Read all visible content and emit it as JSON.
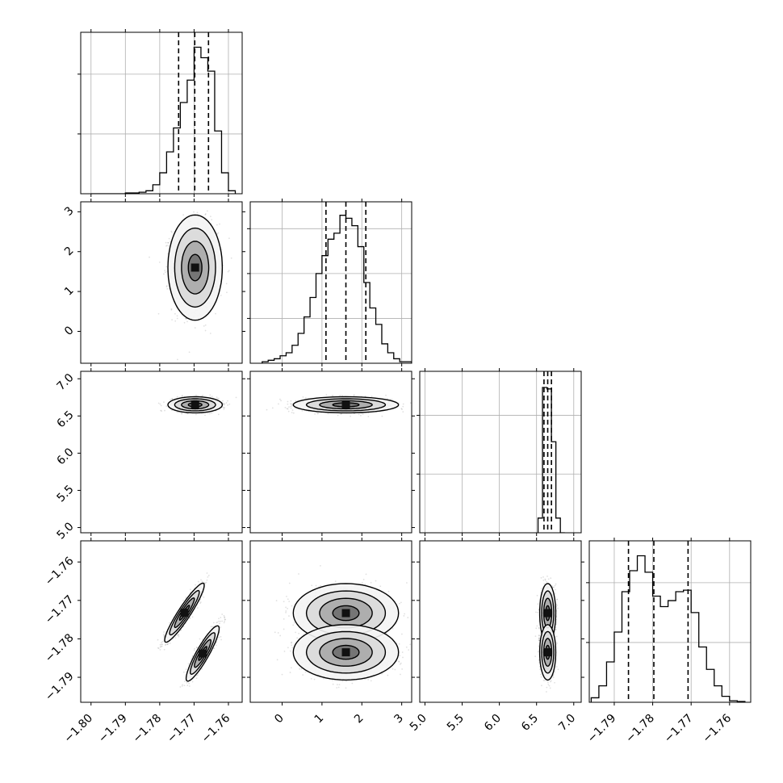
{
  "chart_data": {
    "type": "corner",
    "parameters": 4,
    "grid": true,
    "colors": {
      "line": "#000000",
      "grid": "#b0b0b0",
      "scatter": "#000000",
      "fill": "#000000"
    },
    "axes": {
      "p0": {
        "range": [
          -1.803,
          -1.756
        ],
        "ticks": [
          -1.8,
          -1.79,
          -1.78,
          -1.77,
          -1.76
        ],
        "tick_labels": [
          "−1.80",
          "−1.79",
          "−1.78",
          "−1.77",
          "−1.76"
        ]
      },
      "p1": {
        "range": [
          -0.8,
          3.25
        ],
        "ticks": [
          0,
          1,
          2,
          3
        ],
        "tick_labels": [
          "0",
          "1",
          "2",
          "3"
        ]
      },
      "p2": {
        "range": [
          4.93,
          7.1
        ],
        "ticks": [
          5.0,
          5.5,
          6.0,
          6.5,
          7.0
        ],
        "tick_labels": [
          "5.0",
          "5.5",
          "6.0",
          "6.5",
          "7.0"
        ]
      },
      "p3": {
        "range": [
          -1.7965,
          -1.7545
        ],
        "ticks": [
          -1.79,
          -1.78,
          -1.77,
          -1.76
        ],
        "tick_labels": [
          "−1.79",
          "−1.78",
          "−1.77",
          "−1.76"
        ]
      }
    },
    "histograms": [
      {
        "param": "p0",
        "quantiles": [
          -1.7745,
          -1.7698,
          -1.7658
        ],
        "ymax": 1.08,
        "yticks": [
          0.4,
          0.8
        ],
        "bins": [
          [
            -1.8,
            0.0
          ],
          [
            -1.798,
            0.0
          ],
          [
            -1.796,
            0.0
          ],
          [
            -1.794,
            0.0
          ],
          [
            -1.792,
            0.0
          ],
          [
            -1.79,
            0.005
          ],
          [
            -1.788,
            0.005
          ],
          [
            -1.786,
            0.01
          ],
          [
            -1.784,
            0.02
          ],
          [
            -1.782,
            0.06
          ],
          [
            -1.78,
            0.14
          ],
          [
            -1.778,
            0.28
          ],
          [
            -1.776,
            0.44
          ],
          [
            -1.774,
            0.61
          ],
          [
            -1.772,
            0.76
          ],
          [
            -1.77,
            0.98
          ],
          [
            -1.768,
            0.91
          ],
          [
            -1.766,
            0.82
          ],
          [
            -1.764,
            0.42
          ],
          [
            -1.762,
            0.14
          ],
          [
            -1.76,
            0.02
          ]
        ],
        "bin_width": 0.002
      },
      {
        "param": "p1",
        "quantiles": [
          1.1,
          1.6,
          2.1
        ],
        "ymax": 1.08,
        "yticks": [
          0.3,
          0.6,
          0.9
        ],
        "bins": [
          [
            -0.5,
            0.01
          ],
          [
            -0.35,
            0.02
          ],
          [
            -0.2,
            0.03
          ],
          [
            -0.05,
            0.05
          ],
          [
            0.1,
            0.07
          ],
          [
            0.25,
            0.12
          ],
          [
            0.4,
            0.2
          ],
          [
            0.55,
            0.31
          ],
          [
            0.7,
            0.44
          ],
          [
            0.85,
            0.6
          ],
          [
            1.0,
            0.72
          ],
          [
            1.15,
            0.83
          ],
          [
            1.3,
            0.87
          ],
          [
            1.45,
            0.99
          ],
          [
            1.6,
            0.97
          ],
          [
            1.75,
            0.92
          ],
          [
            1.9,
            0.78
          ],
          [
            2.05,
            0.54
          ],
          [
            2.2,
            0.37
          ],
          [
            2.35,
            0.26
          ],
          [
            2.5,
            0.13
          ],
          [
            2.65,
            0.07
          ],
          [
            2.8,
            0.03
          ],
          [
            2.95,
            0.01
          ],
          [
            3.1,
            0.01
          ]
        ],
        "bin_width": 0.15
      },
      {
        "param": "p2",
        "quantiles": [
          6.6,
          6.65,
          6.7
        ],
        "ymax": 1.1,
        "yticks": [
          0.4,
          0.8
        ],
        "bins": [
          [
            6.52,
            0.1
          ],
          [
            6.58,
            0.99
          ],
          [
            6.64,
            0.98
          ],
          [
            6.7,
            0.62
          ],
          [
            6.76,
            0.1
          ],
          [
            6.82,
            0.0
          ]
        ],
        "bin_width": 0.06
      },
      {
        "param": "p3",
        "quantiles": [
          -1.7863,
          -1.7797,
          -1.7708
        ],
        "ymax": 1.08,
        "yticks": [
          0.4,
          0.8
        ],
        "bins": [
          [
            -1.796,
            0.03
          ],
          [
            -1.794,
            0.11
          ],
          [
            -1.792,
            0.27
          ],
          [
            -1.79,
            0.47
          ],
          [
            -1.788,
            0.74
          ],
          [
            -1.786,
            0.88
          ],
          [
            -1.784,
            0.98
          ],
          [
            -1.782,
            0.87
          ],
          [
            -1.78,
            0.71
          ],
          [
            -1.778,
            0.64
          ],
          [
            -1.776,
            0.68
          ],
          [
            -1.774,
            0.74
          ],
          [
            -1.772,
            0.75
          ],
          [
            -1.77,
            0.6
          ],
          [
            -1.768,
            0.37
          ],
          [
            -1.766,
            0.22
          ],
          [
            -1.764,
            0.11
          ],
          [
            -1.762,
            0.04
          ],
          [
            -1.76,
            0.01
          ],
          [
            -1.758,
            0.005
          ]
        ],
        "bin_width": 0.002
      }
    ],
    "pairs": [
      {
        "x": "p0",
        "y": "p1",
        "modes": [
          {
            "mean": [
              -1.7697,
              1.6
            ],
            "sd": [
              0.0033,
              0.55
            ],
            "rho": 0.0
          }
        ]
      },
      {
        "x": "p0",
        "y": "p2",
        "modes": [
          {
            "mean": [
              -1.7697,
              6.65
            ],
            "sd": [
              0.0033,
              0.045
            ],
            "rho": 0.0
          }
        ]
      },
      {
        "x": "p1",
        "y": "p2",
        "modes": [
          {
            "mean": [
              1.6,
              6.65
            ],
            "sd": [
              0.55,
              0.045
            ],
            "rho": 0.0
          }
        ]
      },
      {
        "x": "p0",
        "y": "p3",
        "modes": [
          {
            "mean": [
              -1.7728,
              -1.7732
            ],
            "sd": [
              0.0024,
              0.0032
            ],
            "rho": 0.93
          },
          {
            "mean": [
              -1.7675,
              -1.7838
            ],
            "sd": [
              0.002,
              0.003
            ],
            "rho": 0.9
          }
        ]
      },
      {
        "x": "p1",
        "y": "p3",
        "modes": [
          {
            "mean": [
              1.6,
              -1.7733
            ],
            "sd": [
              0.55,
              0.0032
            ],
            "rho": 0.0
          },
          {
            "mean": [
              1.6,
              -1.7835
            ],
            "sd": [
              0.55,
              0.003
            ],
            "rho": 0.0
          }
        ]
      },
      {
        "x": "p2",
        "y": "p3",
        "modes": [
          {
            "mean": [
              6.65,
              -1.7733
            ],
            "sd": [
              0.045,
              0.0032
            ],
            "rho": 0.0
          },
          {
            "mean": [
              6.65,
              -1.7835
            ],
            "sd": [
              0.045,
              0.003
            ],
            "rho": 0.0
          }
        ]
      }
    ]
  }
}
